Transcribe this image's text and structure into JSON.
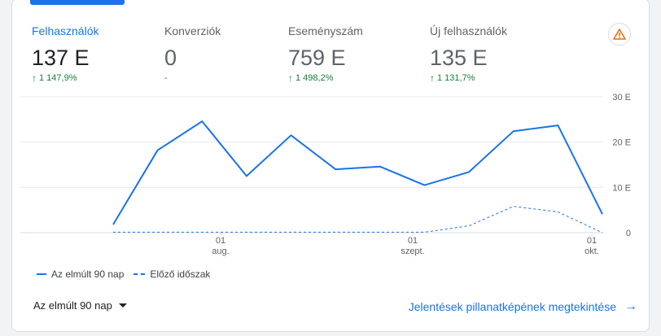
{
  "metrics": [
    {
      "label": "Felhasználók",
      "value": "137 E",
      "delta": "1 147,9%",
      "trend": "up",
      "active": true
    },
    {
      "label": "Konverziók",
      "value": "0",
      "delta": "-",
      "trend": "none",
      "active": false
    },
    {
      "label": "Eseményszám",
      "value": "759 E",
      "delta": "1 498,2%",
      "trend": "up",
      "active": false
    },
    {
      "label": "Új felhasználók",
      "value": "135 E",
      "delta": "1 131,7%",
      "trend": "up",
      "active": false
    }
  ],
  "warning_icon": "warning-triangle-icon",
  "colors": {
    "accent": "#1a73e8",
    "positive": "#188038",
    "grid": "#e8eaed"
  },
  "chart_data": {
    "type": "line",
    "y_ticks": [
      "30 E",
      "20 E",
      "10 E",
      "0"
    ],
    "ylim": [
      0,
      30
    ],
    "x_tick_labels": [
      {
        "day": "01",
        "month": "aug."
      },
      {
        "day": "01",
        "month": "szept."
      },
      {
        "day": "01",
        "month": "okt."
      }
    ],
    "series": [
      {
        "name": "Az elmúlt 90 nap",
        "style": "solid",
        "values": [
          1.8,
          18.2,
          24.6,
          12.5,
          21.5,
          14.0,
          14.6,
          10.5,
          13.4,
          22.4,
          23.7,
          4.1
        ]
      },
      {
        "name": "Előző időszak",
        "style": "dashed",
        "values": [
          0.1,
          0.1,
          0.1,
          0.1,
          0.1,
          0.1,
          0.1,
          0.1,
          1.5,
          5.8,
          4.6,
          0
        ]
      }
    ]
  },
  "legend": {
    "current": "Az elmúlt 90 nap",
    "previous": "Előző időszak"
  },
  "footer": {
    "range_label": "Az elmúlt 90 nap",
    "report_link": "Jelentések pillanatképének megtekintése",
    "arrow": "→"
  }
}
